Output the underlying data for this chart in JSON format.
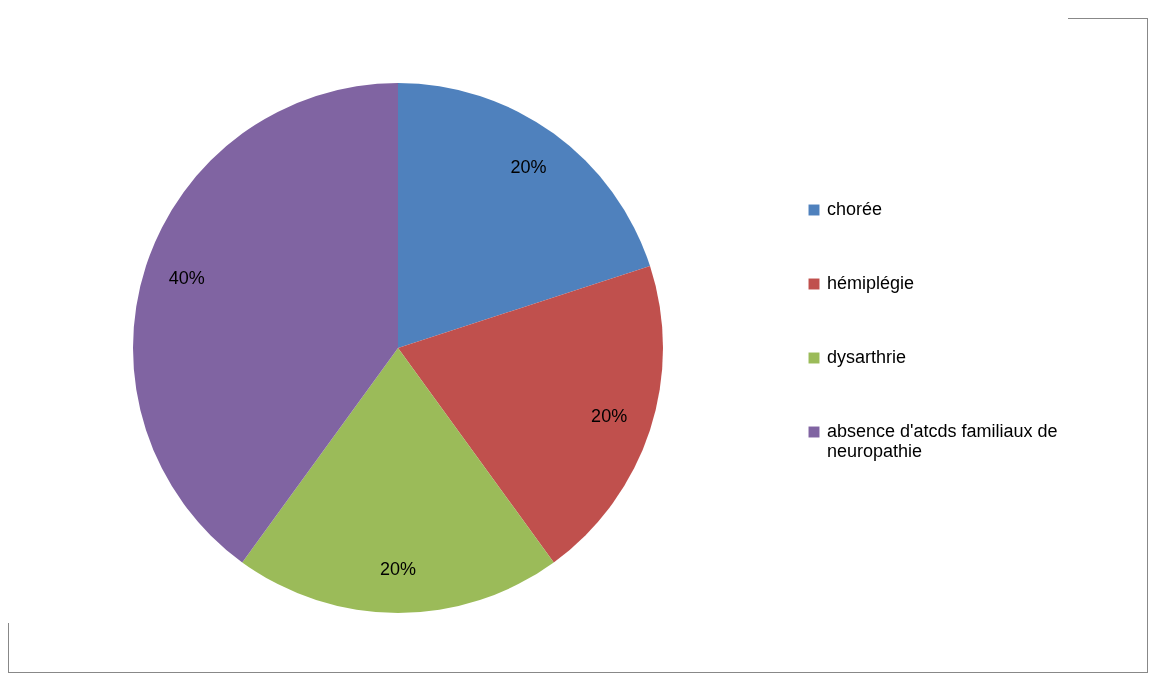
{
  "chart_data": {
    "type": "pie",
    "categories": [
      "chorée",
      "hémiplégie",
      "dysarthrie",
      "absence d'atcds familiaux de neuropathie"
    ],
    "values": [
      20,
      20,
      20,
      40
    ],
    "colors": [
      "#4f81bd",
      "#c0504d",
      "#9bbb59",
      "#8064a2"
    ],
    "value_labels": [
      "20%",
      "20%",
      "20%",
      "40%"
    ],
    "legend": "right"
  }
}
